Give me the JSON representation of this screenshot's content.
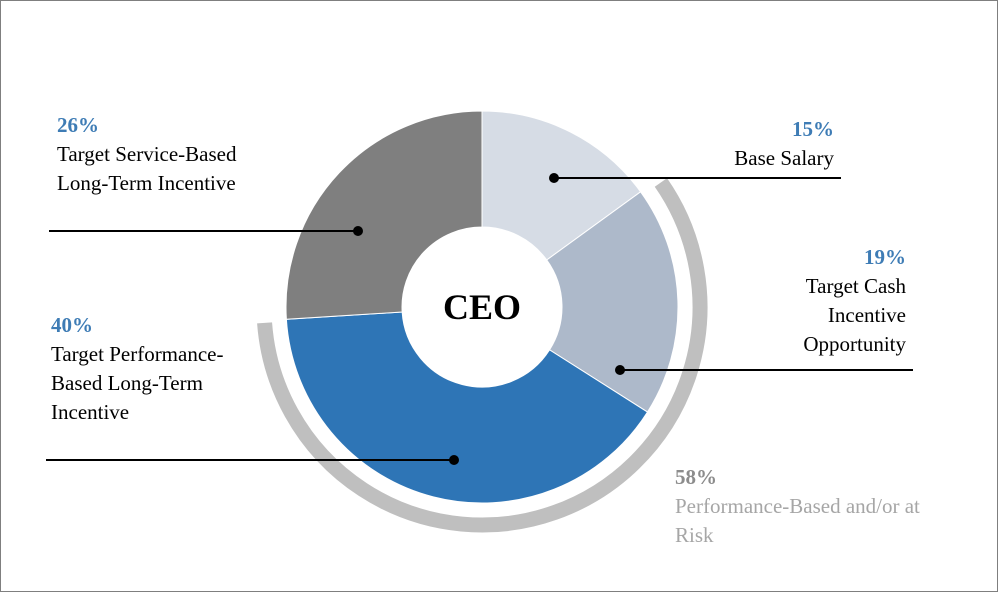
{
  "chart_data": {
    "type": "pie",
    "donut": true,
    "center_label": "CEO",
    "categories": [
      "Base Salary",
      "Target Cash Incentive Opportunity",
      "Target Performance-Based Long-Term Incentive",
      "Target Service-Based Long-Term Incentive"
    ],
    "values": [
      15,
      19,
      40,
      26
    ],
    "value_labels": [
      "15%",
      "19%",
      "40%",
      "26%"
    ],
    "colors": [
      "#d6dce5",
      "#adb9ca",
      "#2e75b6",
      "#7f7f7f"
    ],
    "annotation": {
      "value": 58,
      "value_label": "58%",
      "label": "Performance-Based and/or at Risk",
      "color": "#bfbfbf"
    }
  }
}
